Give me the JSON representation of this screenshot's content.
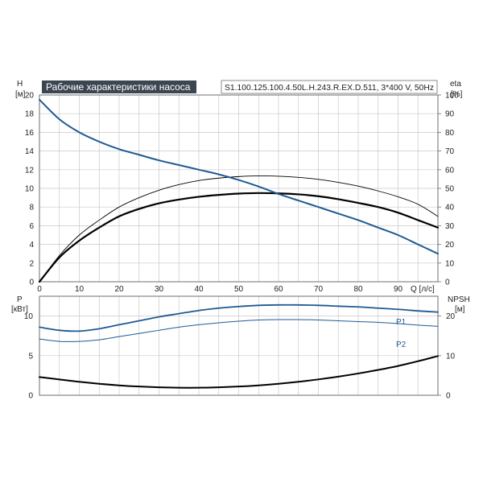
{
  "colors": {
    "blue": "#1f5a92",
    "black": "#000000",
    "grid": "#c8c8c8",
    "title_bg": "#3c4650"
  },
  "header": {
    "title": "Рабочие характеристики насоса",
    "model": "S1.100.125.100.4.50L.H.243.R.EX.D.511, 3*400 V, 50Hz"
  },
  "top_axes": {
    "left_label": "H",
    "left_unit": "[м]",
    "right_label": "eta",
    "right_unit": "[%]",
    "x_label": "Q [л/с]",
    "left_ticks": [
      "0",
      "2",
      "4",
      "6",
      "8",
      "10",
      "12",
      "14",
      "16",
      "18",
      "20"
    ],
    "right_ticks": [
      "0",
      "10",
      "20",
      "30",
      "40",
      "50",
      "60",
      "70",
      "80",
      "90",
      "100"
    ],
    "x_ticks": [
      "0",
      "10",
      "20",
      "30",
      "40",
      "50",
      "60",
      "70",
      "80",
      "90"
    ]
  },
  "bottom_axes": {
    "left_label": "P",
    "left_unit": "[кВт]",
    "right_label": "NPSH",
    "right_unit": "[м]",
    "left_ticks": [
      "0",
      "5",
      "10"
    ],
    "right_ticks": [
      "0",
      "10",
      "20"
    ],
    "p1_label": "P1",
    "p2_label": "P2"
  },
  "chart_data": [
    {
      "type": "line",
      "xlabel": "Q [л/с]",
      "ylabel": "H [м]",
      "y2label": "eta [%]",
      "xlim": [
        0,
        100
      ],
      "ylim": [
        0,
        20
      ],
      "y2lim": [
        0,
        100
      ],
      "grid": true,
      "series": [
        {
          "axis": "left",
          "color": "#1f5a92",
          "x": [
            0,
            5,
            10,
            15,
            20,
            25,
            30,
            35,
            40,
            45,
            50,
            55,
            60,
            65,
            70,
            75,
            80,
            85,
            90,
            95,
            100
          ],
          "y": [
            19.5,
            17.4,
            16.0,
            15.0,
            14.2,
            13.6,
            13.0,
            12.5,
            12.0,
            11.5,
            10.9,
            10.2,
            9.4,
            8.7,
            8.0,
            7.3,
            6.6,
            5.8,
            5.0,
            4.0,
            3.0
          ]
        },
        {
          "axis": "right",
          "color": "#000000",
          "x": [
            0,
            5,
            10,
            15,
            20,
            25,
            30,
            35,
            40,
            45,
            50,
            55,
            60,
            65,
            70,
            75,
            80,
            85,
            90,
            95,
            100
          ],
          "y": [
            0,
            13,
            22,
            29,
            35,
            39,
            42,
            44,
            45.5,
            46.5,
            47.2,
            47.5,
            47.3,
            46.8,
            45.8,
            44.2,
            42.2,
            40.0,
            37.0,
            33.0,
            29.0
          ]
        },
        {
          "axis": "right",
          "color": "#000000",
          "x": [
            0,
            5,
            10,
            15,
            20,
            25,
            30,
            35,
            40,
            45,
            50,
            55,
            60,
            65,
            70,
            75,
            80,
            85,
            90,
            95,
            100
          ],
          "y": [
            0,
            14,
            25,
            33,
            40,
            45,
            49,
            52,
            54.2,
            55.5,
            56.3,
            56.7,
            56.5,
            55.9,
            54.8,
            53.2,
            51.2,
            48.6,
            45.5,
            41.5,
            35.0
          ]
        }
      ]
    },
    {
      "type": "line",
      "xlabel": "",
      "ylabel": "P [кВт]",
      "y2label": "NPSH [м]",
      "xlim": [
        0,
        100
      ],
      "ylim": [
        0,
        12.5
      ],
      "y2lim": [
        0,
        25
      ],
      "grid": true,
      "series": [
        {
          "name": "P1",
          "axis": "left",
          "color": "#1f5a92",
          "x": [
            0,
            5,
            10,
            15,
            20,
            25,
            30,
            35,
            40,
            45,
            50,
            55,
            60,
            65,
            70,
            75,
            80,
            85,
            90,
            95,
            100
          ],
          "y": [
            8.6,
            8.2,
            8.1,
            8.4,
            8.9,
            9.4,
            9.9,
            10.3,
            10.7,
            11.0,
            11.2,
            11.35,
            11.4,
            11.4,
            11.35,
            11.25,
            11.15,
            11.0,
            10.85,
            10.65,
            10.5
          ]
        },
        {
          "name": "P2",
          "axis": "left",
          "color": "#1f5a92",
          "x": [
            0,
            5,
            10,
            15,
            20,
            25,
            30,
            35,
            40,
            45,
            50,
            55,
            60,
            65,
            70,
            75,
            80,
            85,
            90,
            95,
            100
          ],
          "y": [
            7.1,
            6.8,
            6.8,
            7.0,
            7.4,
            7.8,
            8.2,
            8.6,
            8.9,
            9.15,
            9.35,
            9.5,
            9.55,
            9.55,
            9.5,
            9.4,
            9.3,
            9.2,
            9.05,
            8.85,
            8.7
          ]
        },
        {
          "axis": "right",
          "color": "#000000",
          "x": [
            0,
            5,
            10,
            15,
            20,
            25,
            30,
            35,
            40,
            45,
            50,
            55,
            60,
            65,
            70,
            75,
            80,
            85,
            90,
            95,
            100
          ],
          "y": [
            4.6,
            4.0,
            3.4,
            2.9,
            2.5,
            2.2,
            2.0,
            1.9,
            1.9,
            2.0,
            2.2,
            2.5,
            2.9,
            3.4,
            4.0,
            4.7,
            5.5,
            6.4,
            7.4,
            8.6,
            9.9
          ]
        }
      ]
    }
  ]
}
